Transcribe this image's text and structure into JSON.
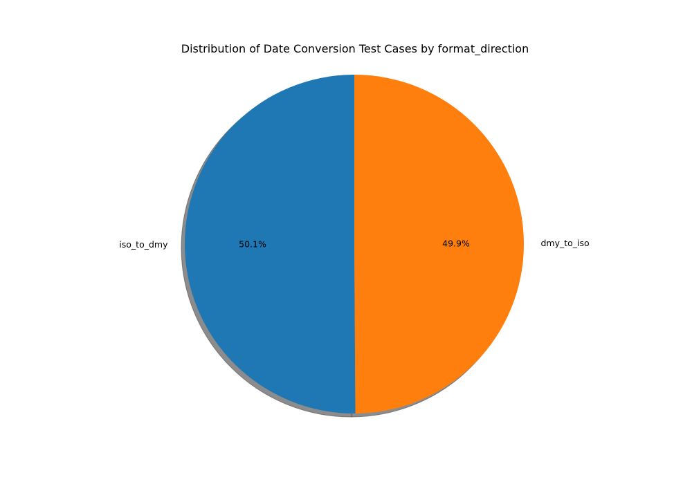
{
  "chart_data": {
    "type": "pie",
    "title": "Distribution of Date Conversion Test Cases by format_direction",
    "slices": [
      {
        "label": "iso_to_dmy",
        "value": 50.1,
        "pct_label": "50.1%",
        "color": "#1f77b4"
      },
      {
        "label": "dmy_to_iso",
        "value": 49.9,
        "pct_label": "49.9%",
        "color": "#ff7f0e"
      }
    ],
    "start_angle_deg": 90,
    "direction": "counterclockwise",
    "shadow": true,
    "shadow_color": "#808080",
    "legend": "none"
  }
}
